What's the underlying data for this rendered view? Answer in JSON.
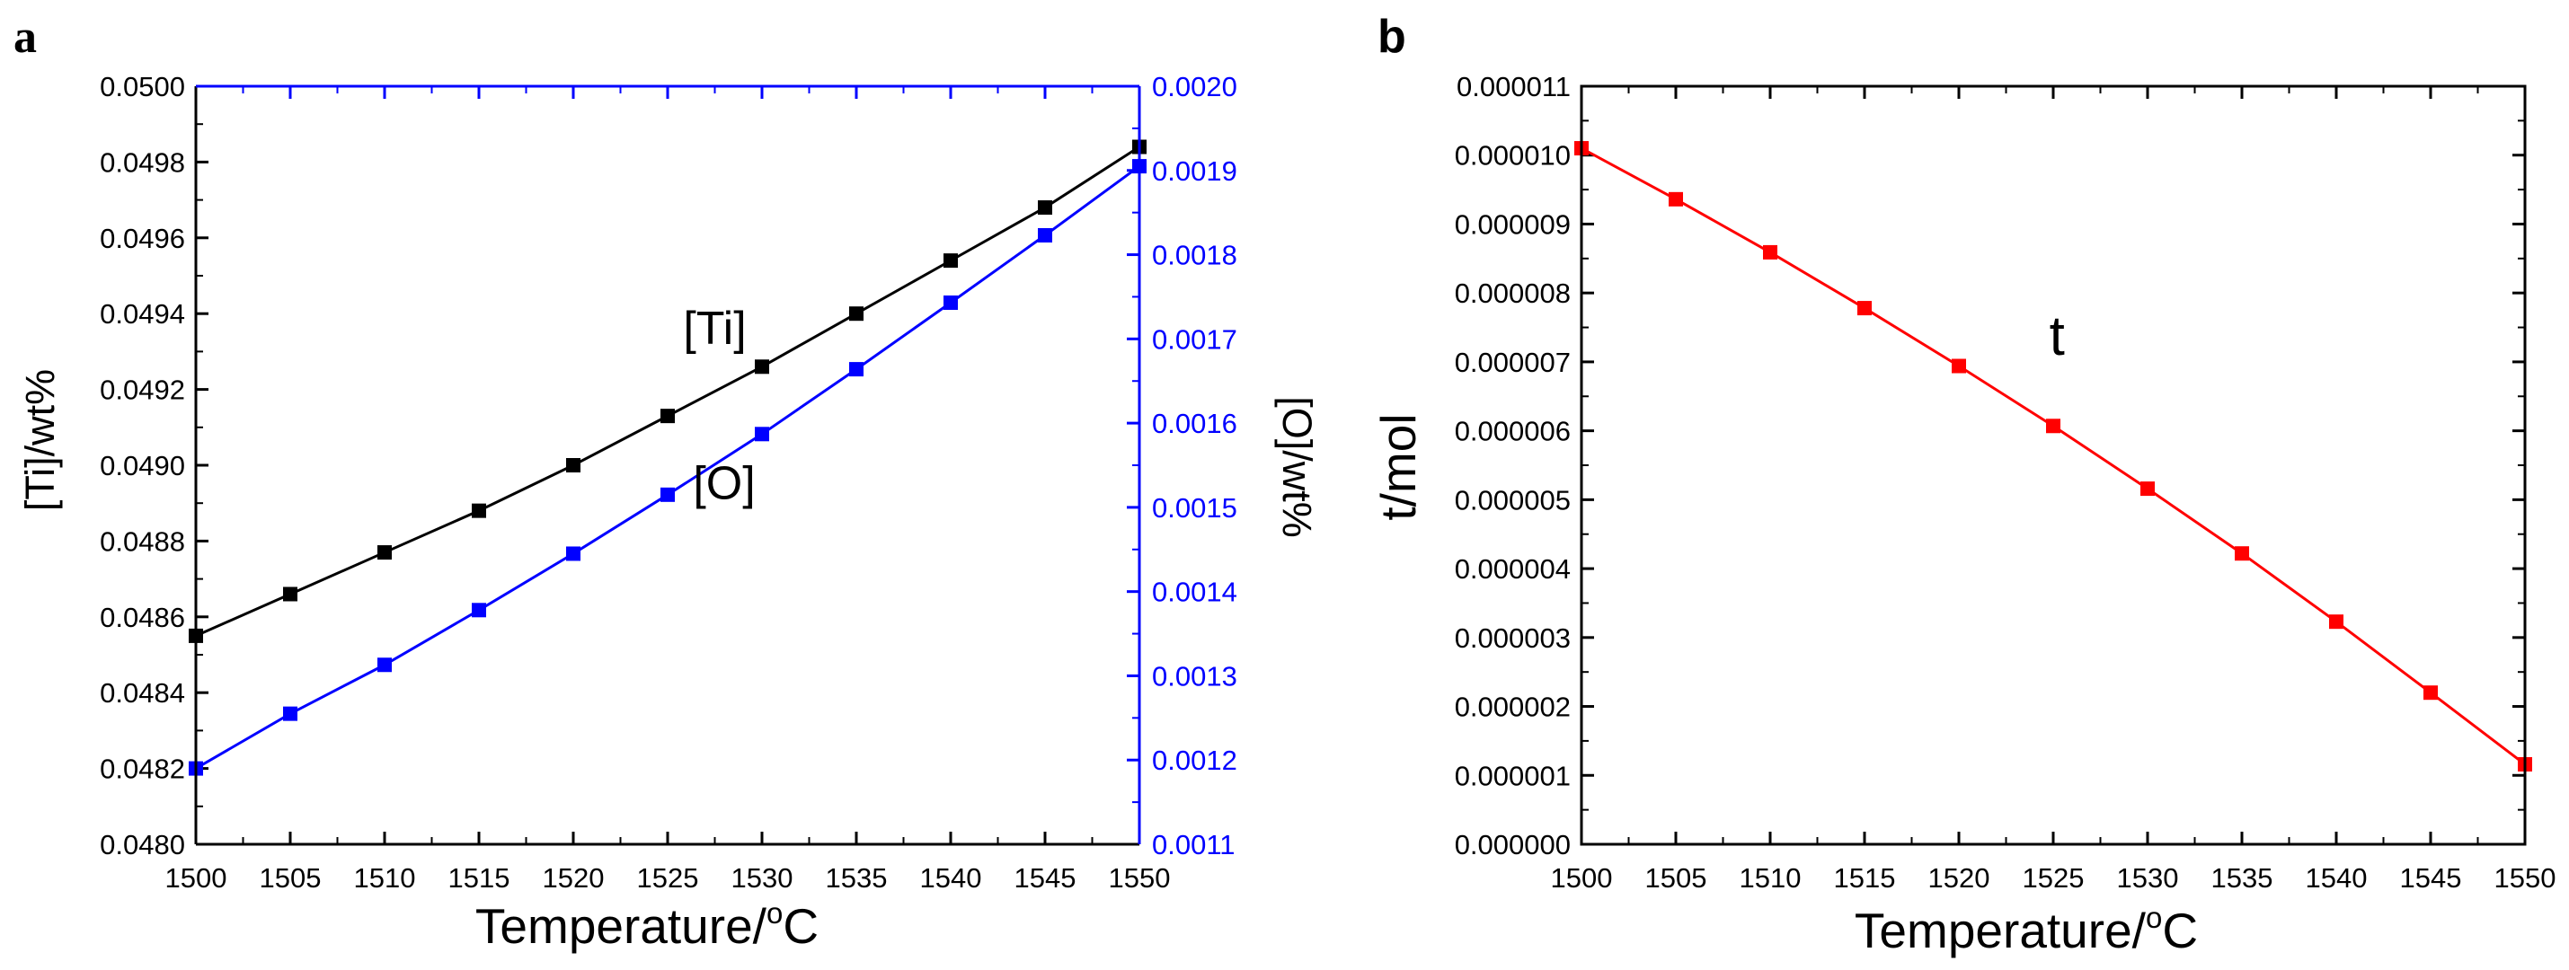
{
  "chart_data": [
    {
      "panel_label": "a",
      "type": "line",
      "x": [
        1500,
        1505,
        1510,
        1515,
        1520,
        1525,
        1530,
        1535,
        1540,
        1545,
        1550
      ],
      "x_ticks": [
        "1500",
        "1505",
        "1510",
        "1515",
        "1520",
        "1525",
        "1530",
        "1535",
        "1540",
        "1545",
        "1550"
      ],
      "xlabel_main": "Temperature/",
      "xlabel_sup": "o",
      "xlabel_end": "C",
      "xlim": [
        1500,
        1550
      ],
      "ylabel_left": "[Ti]/wt%",
      "ylim_left": [
        0.048,
        0.05
      ],
      "y_ticks_left": [
        "0.0480",
        "0.0482",
        "0.0484",
        "0.0486",
        "0.0488",
        "0.0490",
        "0.0492",
        "0.0494",
        "0.0496",
        "0.0498",
        "0.0500"
      ],
      "ylabel_right": "[O]/wt%",
      "ylim_right": [
        0.0011,
        0.002
      ],
      "y_ticks_right": [
        "0.0011",
        "0.0012",
        "0.0013",
        "0.0014",
        "0.0015",
        "0.0016",
        "0.0017",
        "0.0018",
        "0.0019",
        "0.0020"
      ],
      "series": [
        {
          "name": "[Ti]",
          "axis": "left",
          "color": "#000000",
          "values": [
            0.04855,
            0.04866,
            0.04877,
            0.04888,
            0.049,
            0.04913,
            0.04926,
            0.0494,
            0.04954,
            0.04968,
            0.04984
          ]
        },
        {
          "name": "[O]",
          "axis": "right",
          "color": "#0000ff",
          "values": [
            0.00119,
            0.001255,
            0.001313,
            0.001378,
            0.001445,
            0.001515,
            0.001587,
            0.001664,
            0.001743,
            0.001823,
            0.001905
          ]
        }
      ],
      "annotations": [
        {
          "text": "[Ti]",
          "x": 1527.5,
          "y": 0.04932,
          "axis": "left"
        },
        {
          "text": "[O]",
          "x": 1528,
          "y": 0.00151,
          "axis": "right"
        }
      ]
    },
    {
      "panel_label": "b",
      "type": "line",
      "x": [
        1500,
        1505,
        1510,
        1515,
        1520,
        1525,
        1530,
        1535,
        1540,
        1545,
        1550
      ],
      "x_ticks": [
        "1500",
        "1505",
        "1510",
        "1515",
        "1520",
        "1525",
        "1530",
        "1535",
        "1540",
        "1545",
        "1550"
      ],
      "xlabel_main": "Temperature/",
      "xlabel_sup": "o",
      "xlabel_end": "C",
      "xlim": [
        1500,
        1550
      ],
      "ylabel": "t/mol",
      "ylim": [
        0,
        1.1e-05
      ],
      "y_ticks": [
        "0.000000",
        "0.000001",
        "0.000002",
        "0.000003",
        "0.000004",
        "0.000005",
        "0.000006",
        "0.000007",
        "0.000008",
        "0.000009",
        "0.000010",
        "0.000011"
      ],
      "series": [
        {
          "name": "t",
          "color": "#ff0000",
          "values": [
            1.01e-05,
            9.36e-06,
            8.59e-06,
            7.78e-06,
            6.94e-06,
            6.07e-06,
            5.16e-06,
            4.22e-06,
            3.23e-06,
            2.2e-06,
            1.16e-06
          ]
        }
      ],
      "annotations": [
        {
          "text": "t",
          "x": 1525.2,
          "y": 7.1e-06
        }
      ]
    }
  ]
}
